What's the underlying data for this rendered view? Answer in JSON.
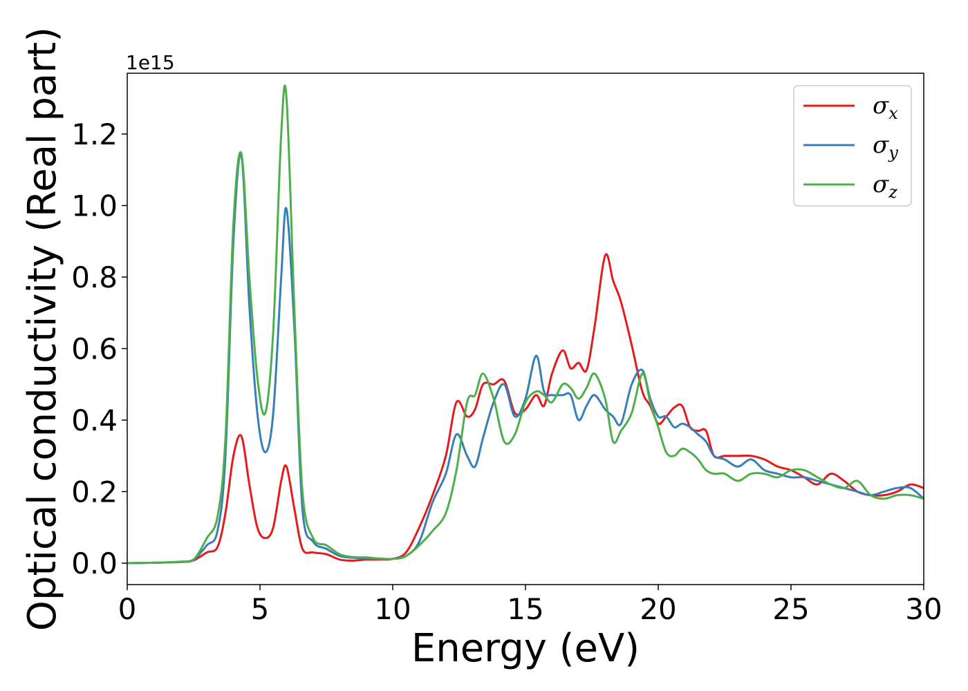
{
  "chart_data": {
    "type": "line",
    "xlabel": "Energy (eV)",
    "ylabel": "Optical conductivity (Real part)",
    "y_offset_label": "1e15",
    "xlim": [
      0,
      30
    ],
    "ylim": [
      -0.06,
      1.37
    ],
    "x_ticks": [
      0,
      5,
      10,
      15,
      20,
      25,
      30
    ],
    "y_ticks": [
      0.0,
      0.2,
      0.4,
      0.6,
      0.8,
      1.0,
      1.2
    ],
    "x_tick_labels": [
      "0",
      "5",
      "10",
      "15",
      "20",
      "25",
      "30"
    ],
    "y_tick_labels": [
      "0.0",
      "0.2",
      "0.4",
      "0.6",
      "0.8",
      "1.0",
      "1.2"
    ],
    "grid": false,
    "legend_position": "top-right",
    "series": [
      {
        "name": "σx",
        "symbol": "σ",
        "subscript": "x",
        "color": "#e41a1c",
        "x": [
          0,
          1,
          2,
          2.5,
          3,
          3.4,
          3.7,
          4.0,
          4.3,
          4.6,
          4.9,
          5.2,
          5.5,
          5.8,
          6.0,
          6.3,
          6.6,
          7.0,
          7.5,
          8,
          8.5,
          9,
          9.5,
          10,
          10.5,
          11,
          11.5,
          12,
          12.4,
          12.8,
          13.1,
          13.4,
          13.8,
          14.2,
          14.6,
          15.0,
          15.4,
          15.7,
          16.0,
          16.4,
          16.7,
          17.0,
          17.3,
          17.6,
          18.0,
          18.3,
          18.6,
          19.0,
          19.4,
          19.7,
          20.0,
          20.3,
          20.6,
          20.9,
          21.2,
          21.5,
          21.8,
          22.1,
          22.5,
          23,
          23.5,
          24,
          24.5,
          25,
          25.5,
          26,
          26.5,
          27,
          27.5,
          28,
          28.5,
          29,
          29.5,
          30
        ],
        "y": [
          0,
          0.001,
          0.003,
          0.008,
          0.03,
          0.045,
          0.14,
          0.3,
          0.355,
          0.22,
          0.1,
          0.07,
          0.1,
          0.23,
          0.27,
          0.15,
          0.04,
          0.03,
          0.025,
          0.01,
          0.007,
          0.01,
          0.01,
          0.012,
          0.03,
          0.1,
          0.19,
          0.3,
          0.45,
          0.41,
          0.43,
          0.5,
          0.5,
          0.51,
          0.42,
          0.43,
          0.47,
          0.44,
          0.53,
          0.595,
          0.545,
          0.56,
          0.54,
          0.66,
          0.86,
          0.79,
          0.73,
          0.61,
          0.48,
          0.44,
          0.39,
          0.41,
          0.435,
          0.44,
          0.38,
          0.37,
          0.37,
          0.3,
          0.3,
          0.3,
          0.3,
          0.29,
          0.27,
          0.26,
          0.24,
          0.22,
          0.25,
          0.23,
          0.2,
          0.19,
          0.19,
          0.2,
          0.22,
          0.21
        ]
      },
      {
        "name": "σy",
        "symbol": "σ",
        "subscript": "y",
        "color": "#377eb8",
        "x": [
          0,
          1,
          2,
          2.5,
          3,
          3.4,
          3.7,
          4.0,
          4.3,
          4.6,
          4.9,
          5.2,
          5.5,
          5.8,
          6.0,
          6.3,
          6.6,
          7.0,
          7.5,
          8,
          8.5,
          9,
          9.5,
          10,
          10.5,
          11,
          11.5,
          12,
          12.4,
          12.8,
          13.1,
          13.4,
          13.8,
          14.2,
          14.6,
          15.0,
          15.4,
          15.7,
          16.0,
          16.4,
          16.7,
          17.0,
          17.3,
          17.6,
          18.0,
          18.3,
          18.6,
          19.0,
          19.4,
          19.7,
          20.0,
          20.3,
          20.6,
          20.9,
          21.2,
          21.5,
          21.8,
          22.1,
          22.5,
          23,
          23.5,
          24,
          24.5,
          25,
          25.5,
          26,
          26.5,
          27,
          27.5,
          28,
          28.5,
          29,
          29.5,
          30
        ],
        "y": [
          0,
          0.001,
          0.004,
          0.01,
          0.05,
          0.09,
          0.3,
          0.9,
          1.14,
          0.72,
          0.42,
          0.31,
          0.42,
          0.8,
          0.99,
          0.65,
          0.15,
          0.06,
          0.04,
          0.02,
          0.015,
          0.013,
          0.012,
          0.012,
          0.02,
          0.06,
          0.17,
          0.25,
          0.36,
          0.3,
          0.27,
          0.35,
          0.45,
          0.5,
          0.41,
          0.46,
          0.58,
          0.48,
          0.47,
          0.47,
          0.47,
          0.4,
          0.44,
          0.47,
          0.43,
          0.41,
          0.39,
          0.5,
          0.54,
          0.46,
          0.41,
          0.41,
          0.38,
          0.39,
          0.38,
          0.36,
          0.34,
          0.3,
          0.29,
          0.27,
          0.29,
          0.26,
          0.25,
          0.24,
          0.24,
          0.23,
          0.22,
          0.21,
          0.2,
          0.19,
          0.2,
          0.21,
          0.21,
          0.18
        ]
      },
      {
        "name": "σz",
        "symbol": "σ",
        "subscript": "z",
        "color": "#4daf4a",
        "x": [
          0,
          1,
          2,
          2.5,
          3,
          3.4,
          3.7,
          4.0,
          4.3,
          4.6,
          4.9,
          5.2,
          5.5,
          5.8,
          6.0,
          6.3,
          6.6,
          7.0,
          7.5,
          8,
          8.5,
          9,
          9.5,
          10,
          10.5,
          11,
          11.5,
          12,
          12.4,
          12.8,
          13.1,
          13.4,
          13.8,
          14.2,
          14.6,
          15.0,
          15.4,
          15.7,
          16.0,
          16.4,
          16.7,
          17.0,
          17.3,
          17.6,
          18.0,
          18.3,
          18.6,
          19.0,
          19.4,
          19.7,
          20.0,
          20.3,
          20.6,
          20.9,
          21.2,
          21.5,
          21.8,
          22.1,
          22.5,
          23,
          23.5,
          24,
          24.5,
          25,
          25.5,
          26,
          26.5,
          27,
          27.5,
          28,
          28.5,
          29,
          29.5,
          30
        ],
        "y": [
          0,
          0.001,
          0.004,
          0.01,
          0.07,
          0.13,
          0.35,
          0.95,
          1.145,
          0.8,
          0.52,
          0.42,
          0.65,
          1.2,
          1.3,
          0.7,
          0.2,
          0.07,
          0.05,
          0.025,
          0.017,
          0.016,
          0.013,
          0.012,
          0.02,
          0.05,
          0.09,
          0.14,
          0.26,
          0.45,
          0.47,
          0.53,
          0.46,
          0.34,
          0.36,
          0.45,
          0.48,
          0.47,
          0.45,
          0.5,
          0.49,
          0.46,
          0.49,
          0.53,
          0.46,
          0.34,
          0.37,
          0.42,
          0.53,
          0.45,
          0.38,
          0.31,
          0.3,
          0.32,
          0.31,
          0.29,
          0.26,
          0.25,
          0.25,
          0.23,
          0.25,
          0.25,
          0.24,
          0.26,
          0.26,
          0.24,
          0.22,
          0.21,
          0.23,
          0.19,
          0.18,
          0.19,
          0.19,
          0.18
        ]
      }
    ]
  }
}
